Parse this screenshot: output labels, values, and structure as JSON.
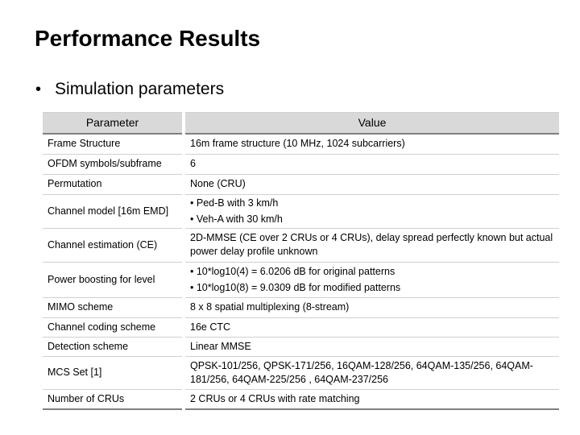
{
  "title": "Performance Results",
  "bullet": "Simulation parameters",
  "table": {
    "headers": [
      "Parameter",
      "Value"
    ],
    "rows": [
      {
        "param": "Frame Structure",
        "value": "16m frame structure (10 MHz, 1024 subcarriers)"
      },
      {
        "param": "OFDM symbols/subframe",
        "value": "6"
      },
      {
        "param": "Permutation",
        "value": "None (CRU)"
      },
      {
        "param": "Channel model [16m EMD]",
        "items": [
          "Ped-B with 3 km/h",
          "Veh-A with 30 km/h"
        ]
      },
      {
        "param": "Channel estimation (CE)",
        "value": "2D-MMSE (CE over 2 CRUs or 4 CRUs), delay spread perfectly known but actual power delay profile unknown"
      },
      {
        "param": "Power boosting for level",
        "items": [
          "10*log10(4) = 6.0206 dB for original patterns",
          "10*log10(8) = 9.0309 dB for modified patterns"
        ]
      },
      {
        "param": "MIMO scheme",
        "value": "8 x 8 spatial multiplexing (8-stream)"
      },
      {
        "param": "Channel coding scheme",
        "value": "16e CTC"
      },
      {
        "param": "Detection scheme",
        "value": "Linear MMSE"
      },
      {
        "param": "MCS Set [1]",
        "value": "QPSK-101/256, QPSK-171/256, 16QAM-128/256, 64QAM-135/256, 64QAM-181/256, 64QAM-225/256 , 64QAM-237/256"
      },
      {
        "param": "Number of CRUs",
        "value": "2 CRUs or 4 CRUs with rate matching"
      }
    ]
  }
}
